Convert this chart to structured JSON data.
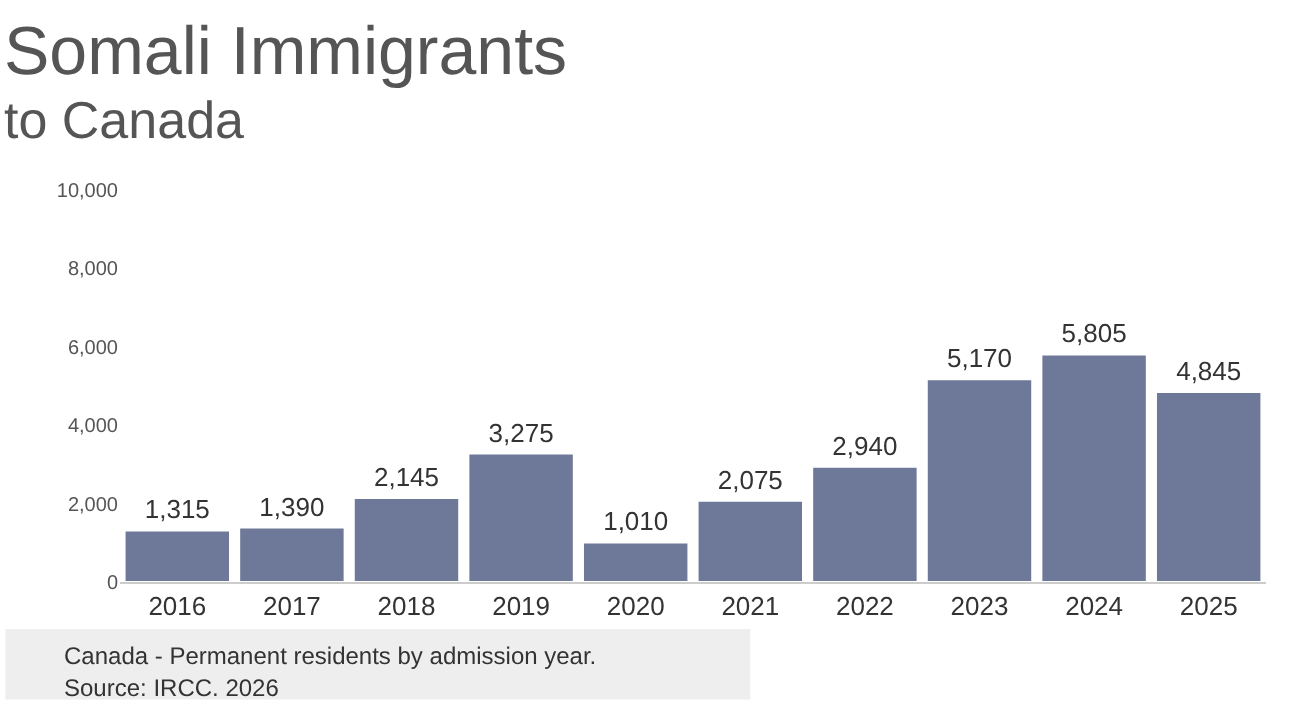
{
  "chart_data": {
    "type": "bar",
    "title": "Somali Immigrants",
    "subtitle": "to Canada",
    "categories": [
      "2016",
      "2017",
      "2018",
      "2019",
      "2020",
      "2021",
      "2022",
      "2023",
      "2024",
      "2025"
    ],
    "values": [
      1315,
      1390,
      2145,
      3275,
      1010,
      2075,
      2940,
      5170,
      5805,
      4845
    ],
    "color": "#6e7898",
    "ylim": [
      0,
      10000
    ],
    "yticks": [
      {
        "value": 0,
        "label": "0"
      },
      {
        "value": 2000,
        "label": "2,000"
      },
      {
        "value": 4000,
        "label": "4,000"
      },
      {
        "value": 6000,
        "label": "6,000"
      },
      {
        "value": 8000,
        "label": "8,000"
      },
      {
        "value": 10000,
        "label": "10,000"
      }
    ],
    "value_labels": [
      "1,315",
      "1,390",
      "2,145",
      "3,275",
      "1,010",
      "2,075",
      "2,940",
      "5,170",
      "5,805",
      "4,845"
    ],
    "legend": false,
    "annotations": [
      "Canada - Permanent residents by admission year.",
      "Source: IRCC. 2026"
    ]
  }
}
